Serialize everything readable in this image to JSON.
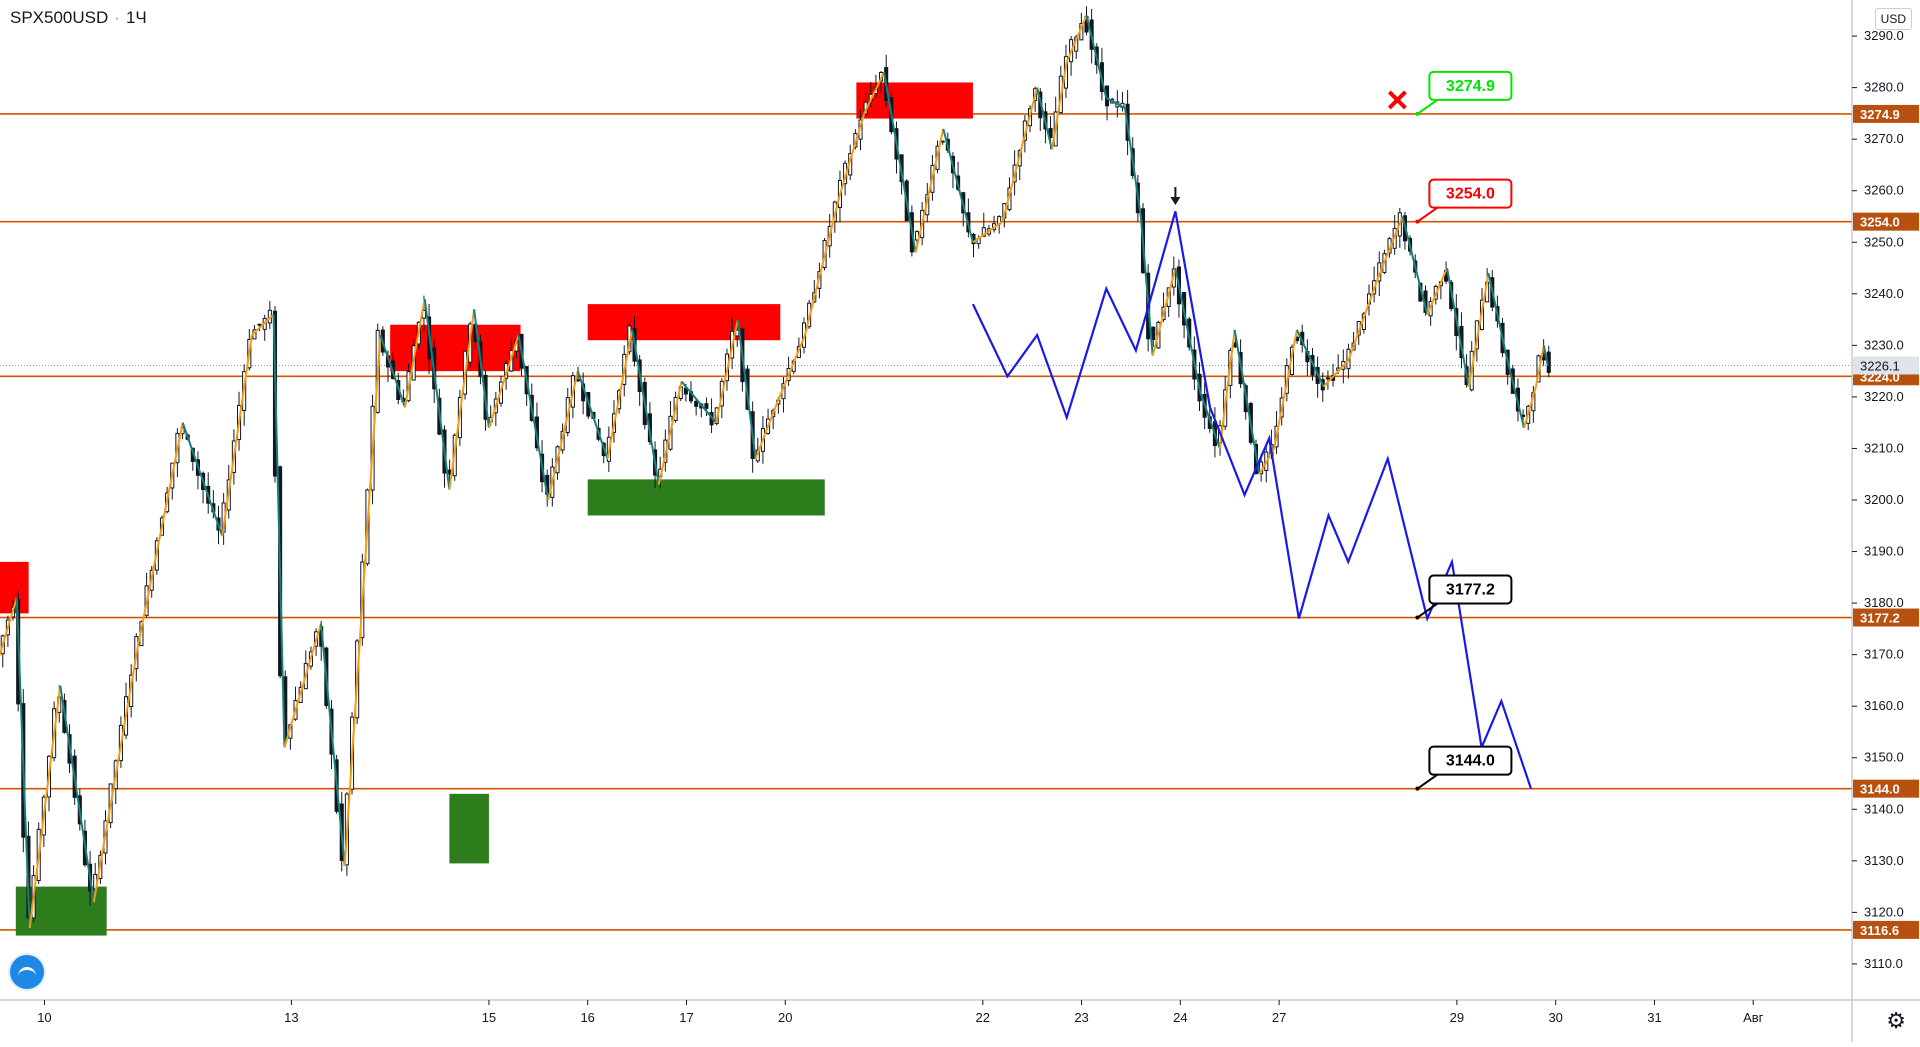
{
  "header": {
    "symbol": "SPX500USD",
    "interval": "1Ч"
  },
  "currency_label": "USD",
  "chart_data": {
    "type": "candlestick",
    "title": "SPX500USD · 1Ч",
    "ylim": [
      3103,
      3297
    ],
    "y_ticks": [
      3110,
      3120,
      3130,
      3140,
      3150,
      3160,
      3170,
      3180,
      3190,
      3200,
      3210,
      3220,
      3230,
      3240,
      3250,
      3260,
      3270,
      3280,
      3290
    ],
    "x_ticks": [
      {
        "label": "10",
        "t": 0.5
      },
      {
        "label": "13",
        "t": 3.0
      },
      {
        "label": "15",
        "t": 5.0
      },
      {
        "label": "16",
        "t": 6.0
      },
      {
        "label": "17",
        "t": 7.0
      },
      {
        "label": "20",
        "t": 8.0
      },
      {
        "label": "22",
        "t": 10.0
      },
      {
        "label": "23",
        "t": 11.0
      },
      {
        "label": "24",
        "t": 12.0
      },
      {
        "label": "27",
        "t": 13.0
      },
      {
        "label": "29",
        "t": 14.8
      },
      {
        "label": "30",
        "t": 15.8
      },
      {
        "label": "31",
        "t": 16.8
      },
      {
        "label": "Авг",
        "t": 17.8
      }
    ],
    "xlim": [
      0.05,
      18.8
    ],
    "last_price": {
      "label": "3226.1",
      "value": 3226.1
    },
    "levels": [
      {
        "value": 3274.9,
        "label": "3274.9",
        "callout": "3274.9",
        "callout_color": "#00e600",
        "status": "reached"
      },
      {
        "value": 3254.0,
        "label": "3254.0",
        "callout": "3254.0",
        "callout_color": "#ff0000"
      },
      {
        "value": 3224.0,
        "label": "3224.0"
      },
      {
        "value": 3177.2,
        "label": "3177.2",
        "callout": "3177.2",
        "callout_color": "#000000"
      },
      {
        "value": 3144.0,
        "label": "3144.0",
        "callout": "3144.0",
        "callout_color": "#000000"
      },
      {
        "value": 3116.6,
        "label": "3116.6"
      }
    ],
    "zones": [
      {
        "kind": "supply",
        "t0": 0.0,
        "t1": 0.34,
        "y0": 3178,
        "y1": 3188
      },
      {
        "kind": "supply",
        "t0": 4.0,
        "t1": 5.32,
        "y0": 3225,
        "y1": 3234
      },
      {
        "kind": "supply",
        "t0": 6.0,
        "t1": 7.95,
        "y0": 3231,
        "y1": 3238
      },
      {
        "kind": "supply",
        "t0": 8.72,
        "t1": 9.9,
        "y0": 3274,
        "y1": 3281
      },
      {
        "kind": "demand",
        "t0": 0.21,
        "t1": 1.13,
        "y0": 3115.5,
        "y1": 3125
      },
      {
        "kind": "demand",
        "t0": 4.6,
        "t1": 5.0,
        "y0": 3129.5,
        "y1": 3143
      },
      {
        "kind": "demand",
        "t0": 6.0,
        "t1": 8.4,
        "y0": 3197,
        "y1": 3204
      }
    ],
    "price_path": [
      [
        0.0,
        3167
      ],
      [
        0.22,
        3181
      ],
      [
        0.35,
        3117
      ],
      [
        0.66,
        3164
      ],
      [
        1.0,
        3122
      ],
      [
        1.45,
        3172
      ],
      [
        1.9,
        3215
      ],
      [
        2.3,
        3193
      ],
      [
        2.6,
        3232
      ],
      [
        2.82,
        3236
      ],
      [
        2.93,
        3152
      ],
      [
        3.3,
        3176
      ],
      [
        3.54,
        3129
      ],
      [
        3.9,
        3232
      ],
      [
        4.15,
        3218
      ],
      [
        4.35,
        3239
      ],
      [
        4.6,
        3202
      ],
      [
        4.85,
        3237
      ],
      [
        5.0,
        3214
      ],
      [
        5.3,
        3232
      ],
      [
        5.6,
        3200
      ],
      [
        5.9,
        3225
      ],
      [
        6.2,
        3208
      ],
      [
        6.45,
        3233
      ],
      [
        6.72,
        3203
      ],
      [
        6.95,
        3223
      ],
      [
        7.3,
        3215
      ],
      [
        7.52,
        3235
      ],
      [
        7.7,
        3208
      ],
      [
        7.9,
        3218
      ],
      [
        8.2,
        3232
      ],
      [
        8.55,
        3259
      ],
      [
        8.8,
        3275
      ],
      [
        9.0,
        3283
      ],
      [
        9.32,
        3248
      ],
      [
        9.6,
        3272
      ],
      [
        9.9,
        3250
      ],
      [
        10.2,
        3254
      ],
      [
        10.55,
        3280
      ],
      [
        10.7,
        3268
      ],
      [
        10.85,
        3285
      ],
      [
        11.05,
        3294
      ],
      [
        11.25,
        3278
      ],
      [
        11.44,
        3276
      ],
      [
        11.6,
        3255
      ],
      [
        11.72,
        3228
      ],
      [
        11.95,
        3245
      ],
      [
        12.2,
        3221
      ],
      [
        12.4,
        3210
      ],
      [
        12.55,
        3233
      ],
      [
        12.8,
        3205
      ],
      [
        12.95,
        3210
      ],
      [
        13.18,
        3233
      ],
      [
        13.45,
        3222
      ],
      [
        13.7,
        3227
      ],
      [
        14.0,
        3243
      ],
      [
        14.25,
        3255
      ],
      [
        14.5,
        3236
      ],
      [
        14.7,
        3245
      ],
      [
        14.92,
        3222
      ],
      [
        15.12,
        3244
      ],
      [
        15.3,
        3228
      ],
      [
        15.48,
        3214
      ],
      [
        15.6,
        3222
      ],
      [
        15.68,
        3230
      ],
      [
        15.72,
        3226
      ]
    ],
    "projection": [
      [
        9.9,
        3238
      ],
      [
        10.25,
        3224
      ],
      [
        10.55,
        3232
      ],
      [
        10.85,
        3216
      ],
      [
        11.25,
        3241
      ],
      [
        11.55,
        3229
      ],
      [
        11.95,
        3256
      ],
      [
        12.3,
        3218
      ],
      [
        12.65,
        3201
      ],
      [
        12.9,
        3212
      ],
      [
        13.2,
        3177
      ],
      [
        13.5,
        3197
      ],
      [
        13.7,
        3188
      ],
      [
        14.1,
        3208
      ],
      [
        14.5,
        3177
      ],
      [
        14.75,
        3188
      ],
      [
        15.05,
        3152
      ],
      [
        15.25,
        3161
      ],
      [
        15.55,
        3144
      ]
    ],
    "colors": {
      "supply": "#ff0000",
      "demand": "#2e7d1d",
      "level_line": "#d35400",
      "level_badge": "#b8500f",
      "projection": "#1a1ae6",
      "zigzag_up": "#f39c12",
      "zigzag_down": "#16807a",
      "candle": "#131722",
      "grid_axis": "#b2b5be"
    }
  }
}
